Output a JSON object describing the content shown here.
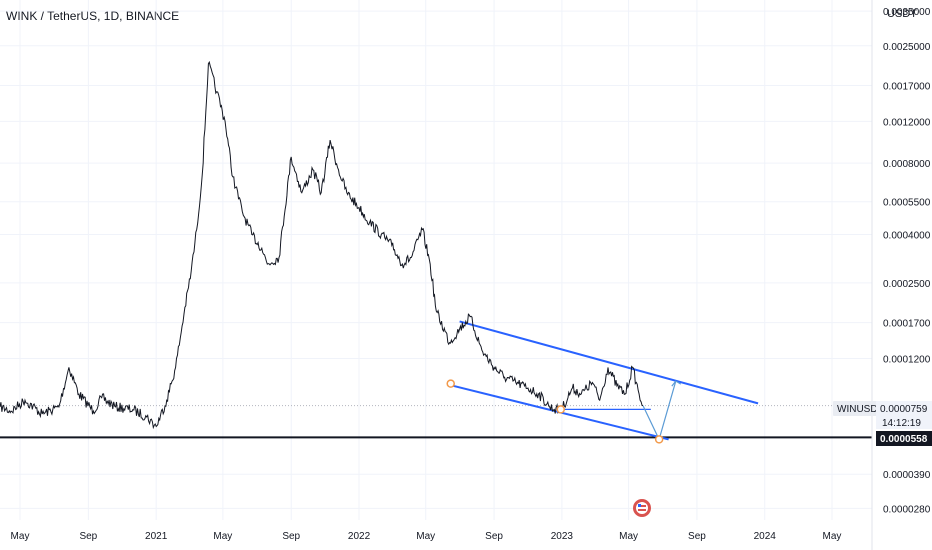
{
  "header": {
    "symbol_title": "WINK / TetherUS, 1D, BINANCE"
  },
  "price_axis": {
    "unit": "USDT",
    "ticks": [
      {
        "label": "0.0035000",
        "value": 0.0035
      },
      {
        "label": "0.0025000",
        "value": 0.0025
      },
      {
        "label": "0.0017000",
        "value": 0.0017
      },
      {
        "label": "0.0012000",
        "value": 0.0012
      },
      {
        "label": "0.0008000",
        "value": 0.0008
      },
      {
        "label": "0.0005500",
        "value": 0.00055
      },
      {
        "label": "0.0004000",
        "value": 0.0004
      },
      {
        "label": "0.0002500",
        "value": 0.00025
      },
      {
        "label": "0.0001700",
        "value": 0.00017
      },
      {
        "label": "0.0001200",
        "value": 0.00012
      },
      {
        "label": "0.0000390",
        "value": 3.9e-05
      },
      {
        "label": "0.0000280",
        "value": 2.8e-05
      }
    ]
  },
  "time_axis": {
    "ticks": [
      {
        "label": "May",
        "date": "2020-05-01"
      },
      {
        "label": "Sep",
        "date": "2020-09-01"
      },
      {
        "label": "2021",
        "date": "2021-01-01"
      },
      {
        "label": "May",
        "date": "2021-05-01"
      },
      {
        "label": "Sep",
        "date": "2021-09-01"
      },
      {
        "label": "2022",
        "date": "2022-01-01"
      },
      {
        "label": "May",
        "date": "2022-05-01"
      },
      {
        "label": "Sep",
        "date": "2022-09-01"
      },
      {
        "label": "2023",
        "date": "2023-01-01"
      },
      {
        "label": "May",
        "date": "2023-05-01"
      },
      {
        "label": "Sep",
        "date": "2023-09-01"
      },
      {
        "label": "2024",
        "date": "2024-01-01"
      },
      {
        "label": "May",
        "date": "2024-05-01"
      }
    ]
  },
  "current_price": {
    "symbol_label": "WINUSDT",
    "price_label": "0.0000759",
    "price_value": 7.59e-05,
    "countdown": "14:12:19"
  },
  "horizontal_line": {
    "price_label": "0.0000558",
    "price_value": 5.58e-05
  },
  "colors": {
    "price_line": "#131722",
    "channel": "#2962ff",
    "projection": "#5b9bd5",
    "marker": "#f2994a",
    "hline": "#131722",
    "grid": "#f0f3fa"
  },
  "chart_data": {
    "type": "line",
    "title": "WINK / TetherUS, 1D, BINANCE",
    "ylabel": "USDT",
    "y_scale": "log",
    "ylim": [
      2.5e-05,
      0.0039
    ],
    "xlim": [
      "2020-03-26",
      "2024-07-12"
    ],
    "grid": true,
    "series": [
      {
        "name": "WINUSDT",
        "x": [
          "2020-03-26",
          "2020-04-15",
          "2020-05-10",
          "2020-06-10",
          "2020-07-10",
          "2020-07-28",
          "2020-08-15",
          "2020-09-10",
          "2020-09-25",
          "2020-10-20",
          "2020-11-20",
          "2020-12-15",
          "2021-01-01",
          "2021-01-20",
          "2021-02-05",
          "2021-02-20",
          "2021-03-05",
          "2021-03-15",
          "2021-03-25",
          "2021-04-05",
          "2021-04-20",
          "2021-05-05",
          "2021-05-19",
          "2021-06-05",
          "2021-06-22",
          "2021-07-10",
          "2021-07-20",
          "2021-08-10",
          "2021-09-01",
          "2021-09-20",
          "2021-10-10",
          "2021-10-25",
          "2021-11-10",
          "2021-11-25",
          "2021-12-10",
          "2022-01-01",
          "2022-01-20",
          "2022-02-10",
          "2022-03-01",
          "2022-03-20",
          "2022-04-05",
          "2022-04-25",
          "2022-05-09",
          "2022-05-20",
          "2022-06-13",
          "2022-07-01",
          "2022-07-20",
          "2022-08-10",
          "2022-09-01",
          "2022-09-20",
          "2022-10-10",
          "2022-11-01",
          "2022-11-20",
          "2022-12-10",
          "2022-12-30",
          "2023-01-20",
          "2023-02-05",
          "2023-02-25",
          "2023-03-10",
          "2023-03-25",
          "2023-04-10",
          "2023-04-25",
          "2023-05-08",
          "2023-05-20",
          "2023-05-27"
        ],
        "values": [
          7.5e-05,
          7.2e-05,
          8e-05,
          7e-05,
          7.5e-05,
          0.00011,
          8.5e-05,
          7.2e-05,
          8.2e-05,
          7.5e-05,
          7.3e-05,
          6.8e-05,
          6.2e-05,
          8e-05,
          0.00011,
          0.000185,
          0.00028,
          0.00042,
          0.00072,
          0.0021,
          0.0016,
          0.0012,
          0.0007,
          0.0005,
          0.0004,
          0.00035,
          0.0003,
          0.00032,
          0.00085,
          0.0006,
          0.00075,
          0.0006,
          0.001,
          0.00075,
          0.0006,
          0.00052,
          0.00045,
          0.0004,
          0.00036,
          0.0003,
          0.00032,
          0.00042,
          0.0003,
          0.00019,
          0.00014,
          0.00016,
          0.00018,
          0.00013,
          0.00011,
          0.0001,
          9.5e-05,
          9e-05,
          8.5e-05,
          7.5e-05,
          7.2e-05,
          9e-05,
          8.5e-05,
          9.5e-05,
          8e-05,
          0.00011,
          9.2e-05,
          8.5e-05,
          0.00011,
          8.5e-05,
          7.6e-05
        ]
      }
    ],
    "annotations": {
      "channel_upper": {
        "x": [
          "2022-07-01",
          "2023-12-20"
        ],
        "y": [
          0.000172,
          7.76e-05
        ]
      },
      "channel_lower": {
        "x": [
          "2022-06-13",
          "2023-07-12"
        ],
        "y": [
          9.28e-05,
          5.47e-05
        ]
      },
      "neckline": {
        "x": [
          "2022-12-25",
          "2023-06-10"
        ],
        "y": [
          7.32e-05,
          7.32e-05
        ]
      },
      "projection_path": {
        "x": [
          "2023-05-27",
          "2023-06-25",
          "2023-07-25"
        ],
        "y": [
          7.59e-05,
          5.47e-05,
          9.63e-05
        ]
      },
      "pivot_markers": [
        {
          "x": "2022-06-15",
          "y": 9.4e-05
        },
        {
          "x": "2022-12-30",
          "y": 7.32e-05
        },
        {
          "x": "2023-06-25",
          "y": 5.47e-05
        }
      ]
    }
  }
}
